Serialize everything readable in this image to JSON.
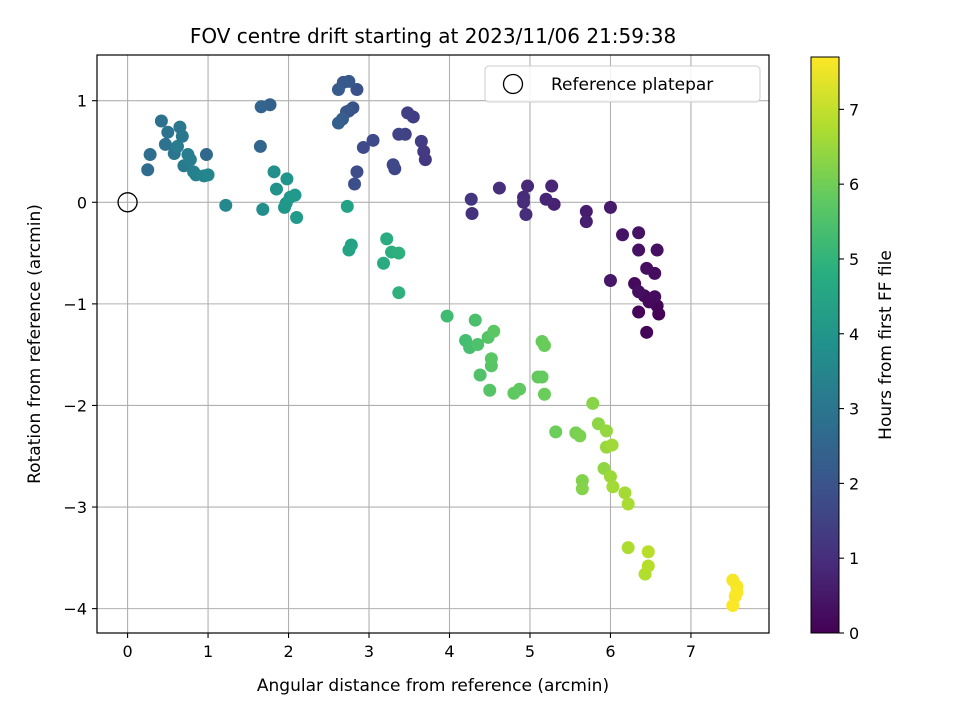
{
  "chart_data": {
    "type": "scatter",
    "title": "FOV centre drift starting at 2023/11/06 21:59:38",
    "xlabel": "Angular distance from reference (arcmin)",
    "ylabel": "Rotation from reference (arcmin)",
    "colorbar_label": "Hours from first FF file",
    "xlim": [
      -0.38,
      7.97
    ],
    "ylim": [
      -4.24,
      1.45
    ],
    "x_ticks": [
      0,
      1,
      2,
      3,
      4,
      5,
      6,
      7
    ],
    "y_ticks": [
      1,
      0,
      -1,
      -2,
      -3,
      -4
    ],
    "colorbar_range": [
      0,
      7.7
    ],
    "colorbar_ticks": [
      0,
      1,
      2,
      3,
      4,
      5,
      6,
      7
    ],
    "colormap": "viridis",
    "grid": true,
    "legend": {
      "placement": "upper-right",
      "entries": [
        "Reference platepar"
      ]
    },
    "reference_point": {
      "x": 0,
      "y": 0
    },
    "points": [
      {
        "x": 6.6,
        "y": -1.1,
        "h": 0.05
      },
      {
        "x": 6.58,
        "y": -1.02,
        "h": 0.08
      },
      {
        "x": 6.45,
        "y": -1.28,
        "h": 0.1
      },
      {
        "x": 6.35,
        "y": -1.08,
        "h": 0.12
      },
      {
        "x": 6.48,
        "y": -0.98,
        "h": 0.15
      },
      {
        "x": 6.42,
        "y": -0.92,
        "h": 0.18
      },
      {
        "x": 6.3,
        "y": -0.8,
        "h": 0.2
      },
      {
        "x": 6.55,
        "y": -0.93,
        "h": 0.23
      },
      {
        "x": 6.55,
        "y": -0.7,
        "h": 0.25
      },
      {
        "x": 6.45,
        "y": -0.65,
        "h": 0.28
      },
      {
        "x": 6.35,
        "y": -0.88,
        "h": 0.3
      },
      {
        "x": 6.58,
        "y": -0.47,
        "h": 0.32
      },
      {
        "x": 6.35,
        "y": -0.47,
        "h": 0.35
      },
      {
        "x": 6.35,
        "y": -0.3,
        "h": 0.38
      },
      {
        "x": 6.15,
        "y": -0.32,
        "h": 0.42
      },
      {
        "x": 6.0,
        "y": -0.77,
        "h": 0.48
      },
      {
        "x": 6.0,
        "y": -0.05,
        "h": 0.55
      },
      {
        "x": 5.7,
        "y": -0.09,
        "h": 0.6
      },
      {
        "x": 5.7,
        "y": -0.19,
        "h": 0.65
      },
      {
        "x": 5.3,
        "y": -0.02,
        "h": 0.72
      },
      {
        "x": 5.27,
        "y": 0.16,
        "h": 0.78
      },
      {
        "x": 5.2,
        "y": 0.03,
        "h": 0.82
      },
      {
        "x": 4.97,
        "y": 0.16,
        "h": 0.88
      },
      {
        "x": 4.92,
        "y": 0.05,
        "h": 0.92
      },
      {
        "x": 4.92,
        "y": 0.0,
        "h": 0.96
      },
      {
        "x": 4.95,
        "y": -0.12,
        "h": 1.0
      },
      {
        "x": 4.62,
        "y": 0.14,
        "h": 1.05
      },
      {
        "x": 4.28,
        "y": -0.11,
        "h": 1.1
      },
      {
        "x": 4.27,
        "y": 0.03,
        "h": 1.15
      },
      {
        "x": 3.7,
        "y": 0.42,
        "h": 1.25
      },
      {
        "x": 3.68,
        "y": 0.5,
        "h": 1.3
      },
      {
        "x": 3.65,
        "y": 0.6,
        "h": 1.35
      },
      {
        "x": 3.55,
        "y": 0.84,
        "h": 1.4
      },
      {
        "x": 3.48,
        "y": 0.88,
        "h": 1.45
      },
      {
        "x": 3.45,
        "y": 0.67,
        "h": 1.5
      },
      {
        "x": 3.37,
        "y": 0.67,
        "h": 1.55
      },
      {
        "x": 3.32,
        "y": 0.33,
        "h": 1.6
      },
      {
        "x": 3.3,
        "y": 0.37,
        "h": 1.65
      },
      {
        "x": 3.05,
        "y": 0.61,
        "h": 1.7
      },
      {
        "x": 2.93,
        "y": 0.54,
        "h": 1.75
      },
      {
        "x": 2.85,
        "y": 0.3,
        "h": 1.8
      },
      {
        "x": 2.82,
        "y": 0.18,
        "h": 1.85
      },
      {
        "x": 2.85,
        "y": 1.11,
        "h": 1.9
      },
      {
        "x": 2.8,
        "y": 0.93,
        "h": 1.95
      },
      {
        "x": 2.75,
        "y": 0.9,
        "h": 2.0
      },
      {
        "x": 2.72,
        "y": 0.89,
        "h": 2.05
      },
      {
        "x": 2.75,
        "y": 1.19,
        "h": 2.1
      },
      {
        "x": 2.68,
        "y": 1.18,
        "h": 2.15
      },
      {
        "x": 2.62,
        "y": 1.11,
        "h": 2.2
      },
      {
        "x": 2.67,
        "y": 0.82,
        "h": 2.25
      },
      {
        "x": 2.62,
        "y": 0.78,
        "h": 2.3
      },
      {
        "x": 1.77,
        "y": 0.96,
        "h": 2.4
      },
      {
        "x": 1.66,
        "y": 0.94,
        "h": 2.45
      },
      {
        "x": 1.65,
        "y": 0.55,
        "h": 2.5
      },
      {
        "x": 0.98,
        "y": 0.47,
        "h": 2.6
      },
      {
        "x": 0.25,
        "y": 0.32,
        "h": 2.7
      },
      {
        "x": 0.28,
        "y": 0.47,
        "h": 2.75
      },
      {
        "x": 0.42,
        "y": 0.8,
        "h": 2.85
      },
      {
        "x": 0.47,
        "y": 0.57,
        "h": 2.9
      },
      {
        "x": 0.5,
        "y": 0.69,
        "h": 2.95
      },
      {
        "x": 0.58,
        "y": 0.48,
        "h": 3.0
      },
      {
        "x": 0.65,
        "y": 0.74,
        "h": 3.05
      },
      {
        "x": 0.68,
        "y": 0.65,
        "h": 3.1
      },
      {
        "x": 0.7,
        "y": 0.36,
        "h": 3.15
      },
      {
        "x": 0.62,
        "y": 0.55,
        "h": 3.2
      },
      {
        "x": 0.75,
        "y": 0.47,
        "h": 3.25
      },
      {
        "x": 0.78,
        "y": 0.42,
        "h": 3.3
      },
      {
        "x": 0.82,
        "y": 0.3,
        "h": 3.35
      },
      {
        "x": 0.85,
        "y": 0.27,
        "h": 3.4
      },
      {
        "x": 0.95,
        "y": 0.26,
        "h": 3.45
      },
      {
        "x": 1.0,
        "y": 0.27,
        "h": 3.5
      },
      {
        "x": 1.22,
        "y": -0.03,
        "h": 3.6
      },
      {
        "x": 1.68,
        "y": -0.07,
        "h": 3.8
      },
      {
        "x": 1.82,
        "y": 0.3,
        "h": 3.85
      },
      {
        "x": 1.85,
        "y": 0.13,
        "h": 3.9
      },
      {
        "x": 1.97,
        "y": -0.01,
        "h": 3.95
      },
      {
        "x": 1.98,
        "y": 0.23,
        "h": 4.0
      },
      {
        "x": 1.95,
        "y": -0.05,
        "h": 4.05
      },
      {
        "x": 2.02,
        "y": 0.05,
        "h": 4.1
      },
      {
        "x": 2.08,
        "y": 0.07,
        "h": 4.15
      },
      {
        "x": 2.1,
        "y": -0.15,
        "h": 4.2
      },
      {
        "x": 2.73,
        "y": -0.04,
        "h": 4.4
      },
      {
        "x": 2.78,
        "y": -0.42,
        "h": 4.45
      },
      {
        "x": 2.75,
        "y": -0.47,
        "h": 4.5
      },
      {
        "x": 3.18,
        "y": -0.6,
        "h": 4.7
      },
      {
        "x": 3.22,
        "y": -0.36,
        "h": 4.75
      },
      {
        "x": 3.28,
        "y": -0.49,
        "h": 4.8
      },
      {
        "x": 3.37,
        "y": -0.5,
        "h": 4.85
      },
      {
        "x": 3.37,
        "y": -0.89,
        "h": 4.9
      },
      {
        "x": 3.97,
        "y": -1.12,
        "h": 5.3
      },
      {
        "x": 4.2,
        "y": -1.36,
        "h": 5.35
      },
      {
        "x": 4.25,
        "y": -1.43,
        "h": 5.4
      },
      {
        "x": 4.32,
        "y": -1.16,
        "h": 5.45
      },
      {
        "x": 4.35,
        "y": -1.4,
        "h": 5.5
      },
      {
        "x": 4.38,
        "y": -1.7,
        "h": 5.55
      },
      {
        "x": 4.48,
        "y": -1.33,
        "h": 5.6
      },
      {
        "x": 4.5,
        "y": -1.85,
        "h": 5.62
      },
      {
        "x": 4.52,
        "y": -1.61,
        "h": 5.65
      },
      {
        "x": 4.52,
        "y": -1.54,
        "h": 5.68
      },
      {
        "x": 4.55,
        "y": -1.27,
        "h": 5.7
      },
      {
        "x": 4.8,
        "y": -1.88,
        "h": 5.75
      },
      {
        "x": 4.87,
        "y": -1.84,
        "h": 5.78
      },
      {
        "x": 5.1,
        "y": -1.72,
        "h": 5.82
      },
      {
        "x": 5.15,
        "y": -1.72,
        "h": 5.85
      },
      {
        "x": 5.15,
        "y": -1.37,
        "h": 5.88
      },
      {
        "x": 5.18,
        "y": -1.41,
        "h": 5.9
      },
      {
        "x": 5.18,
        "y": -1.89,
        "h": 5.92
      },
      {
        "x": 5.32,
        "y": -2.26,
        "h": 5.95
      },
      {
        "x": 5.57,
        "y": -2.27,
        "h": 6.1
      },
      {
        "x": 5.62,
        "y": -2.3,
        "h": 6.15
      },
      {
        "x": 5.65,
        "y": -2.74,
        "h": 6.2
      },
      {
        "x": 5.65,
        "y": -2.82,
        "h": 6.25
      },
      {
        "x": 5.78,
        "y": -1.98,
        "h": 6.3
      },
      {
        "x": 5.85,
        "y": -2.18,
        "h": 6.35
      },
      {
        "x": 5.92,
        "y": -2.62,
        "h": 6.4
      },
      {
        "x": 5.95,
        "y": -2.25,
        "h": 6.45
      },
      {
        "x": 5.95,
        "y": -2.41,
        "h": 6.5
      },
      {
        "x": 6.0,
        "y": -2.7,
        "h": 6.55
      },
      {
        "x": 6.02,
        "y": -2.39,
        "h": 6.6
      },
      {
        "x": 6.03,
        "y": -2.8,
        "h": 6.62
      },
      {
        "x": 6.18,
        "y": -2.86,
        "h": 6.65
      },
      {
        "x": 6.22,
        "y": -2.97,
        "h": 6.7
      },
      {
        "x": 6.22,
        "y": -3.4,
        "h": 6.75
      },
      {
        "x": 6.43,
        "y": -3.66,
        "h": 6.8
      },
      {
        "x": 6.47,
        "y": -3.58,
        "h": 6.85
      },
      {
        "x": 6.47,
        "y": -3.44,
        "h": 6.88
      },
      {
        "x": 7.52,
        "y": -3.72,
        "h": 7.6
      },
      {
        "x": 7.57,
        "y": -3.78,
        "h": 7.62
      },
      {
        "x": 7.55,
        "y": -3.88,
        "h": 7.65
      },
      {
        "x": 7.57,
        "y": -3.84,
        "h": 7.66
      },
      {
        "x": 7.52,
        "y": -3.97,
        "h": 7.68
      }
    ]
  }
}
